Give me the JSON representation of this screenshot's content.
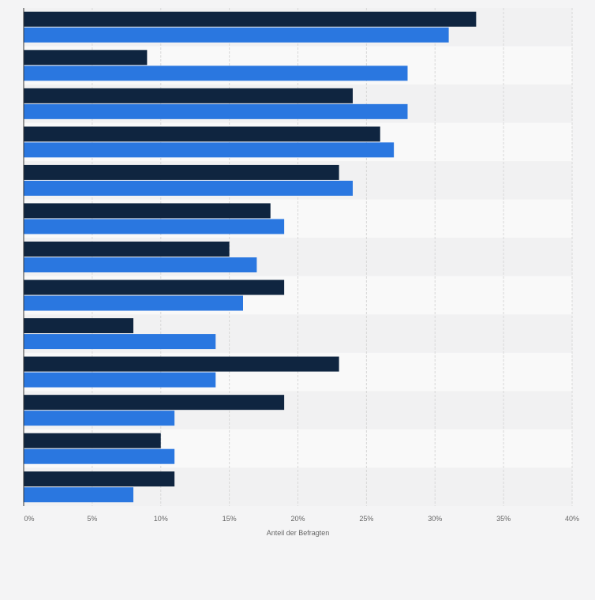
{
  "chart_data": {
    "type": "bar",
    "orientation": "horizontal",
    "categories": [
      "",
      "",
      "",
      "",
      "",
      "",
      "",
      "",
      "",
      "",
      "",
      "",
      ""
    ],
    "series": [
      {
        "color": "#0f2540",
        "values": [
          33,
          9,
          24,
          26,
          23,
          18,
          15,
          19,
          8,
          23,
          19,
          10,
          11
        ]
      },
      {
        "color": "#2a77e0",
        "values": [
          31,
          28,
          28,
          27,
          24,
          19,
          17,
          16,
          14,
          14,
          11,
          11,
          8
        ]
      }
    ],
    "xlabel": "Anteil der Befragten",
    "xlim": [
      0,
      40
    ],
    "xticks": [
      0,
      5,
      10,
      15,
      20,
      25,
      30,
      35,
      40
    ],
    "xtick_labels": [
      "0%",
      "5%",
      "10%",
      "15%",
      "20%",
      "25%",
      "30%",
      "35%",
      "40%"
    ],
    "grid": true,
    "legend": "none"
  }
}
